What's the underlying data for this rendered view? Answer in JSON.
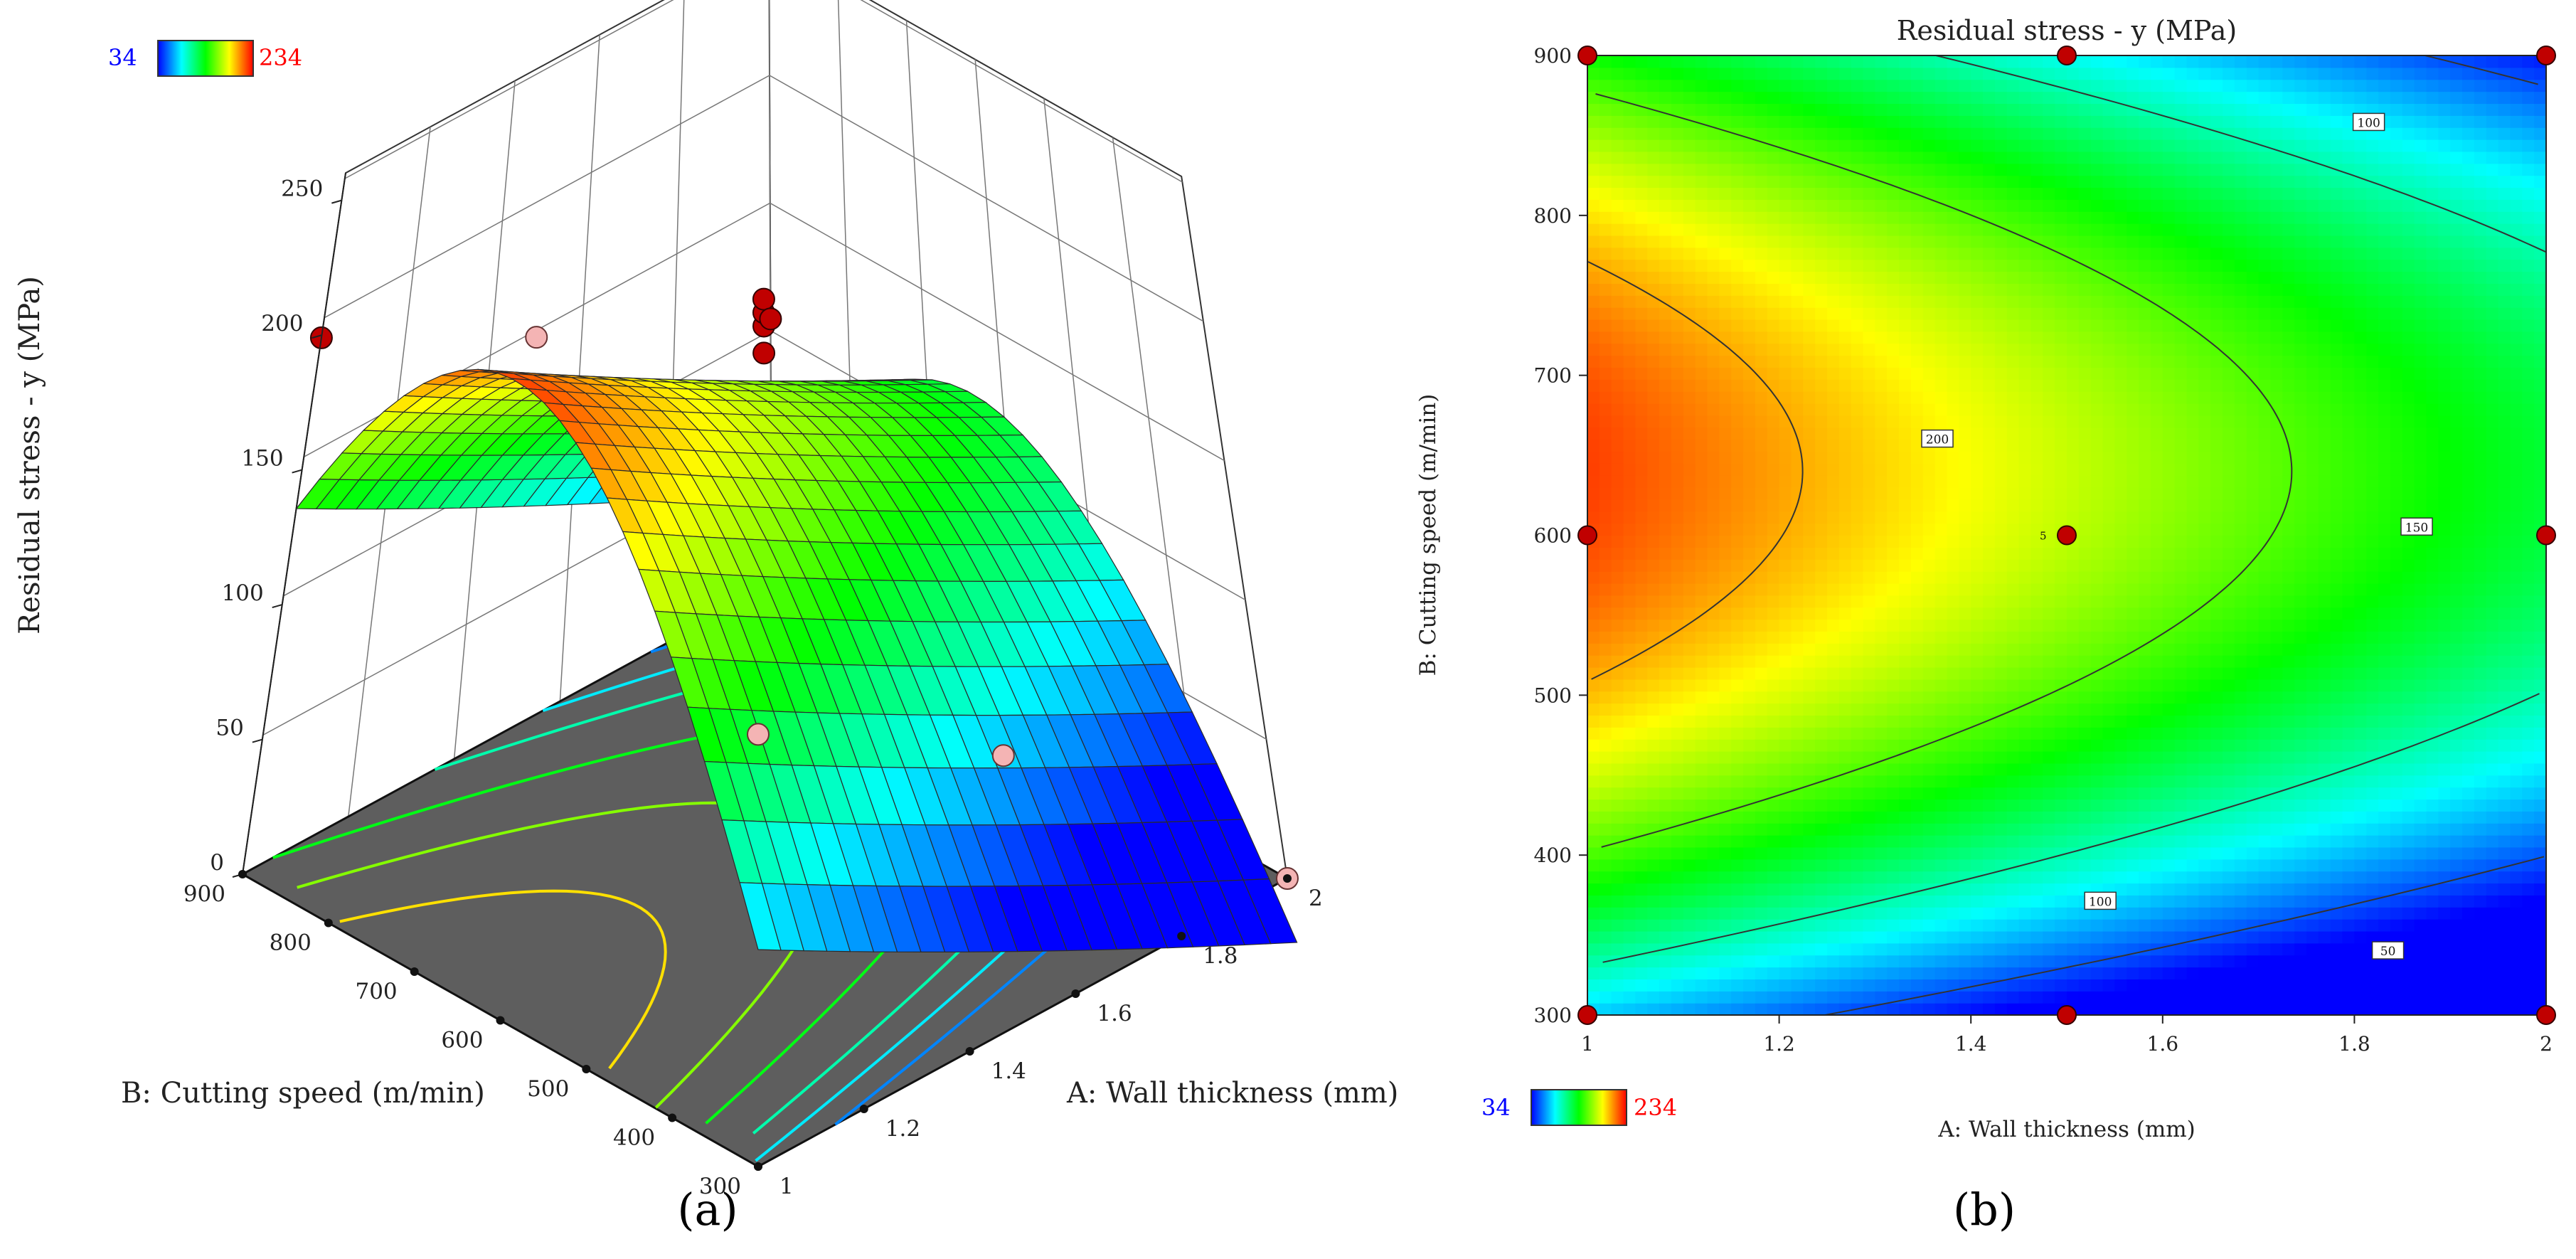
{
  "chart_data": [
    {
      "panel": "a",
      "type": "surface3d",
      "caption": "(a)",
      "zlabel": "Residual stress - y (MPa)",
      "xlabel": "A: Wall thickness (mm)",
      "ylabel": "B: Cutting speed (m/min)",
      "legend": {
        "min": "34",
        "max": "234",
        "min_color": "#0000ff",
        "max_color": "#ff0000"
      },
      "z_ticks": [
        "0",
        "50",
        "100",
        "150",
        "200",
        "250"
      ],
      "x_ticks": [
        "1",
        "1.2",
        "1.4",
        "1.6",
        "1.8",
        "2"
      ],
      "y_ticks": [
        "300",
        "400",
        "500",
        "600",
        "700",
        "800",
        "900"
      ],
      "x_range": [
        1,
        2
      ],
      "y_range": [
        300,
        900
      ],
      "z_range": [
        0,
        250
      ],
      "points_above": [
        {
          "A": 1.0,
          "B": 900,
          "y": 199
        },
        {
          "A": 1.5,
          "B": 600,
          "y": 204
        },
        {
          "A": 1.5,
          "B": 600,
          "y": 209
        },
        {
          "A": 1.5,
          "B": 600,
          "y": 214
        },
        {
          "A": 1.5,
          "B": 600,
          "y": 194
        },
        {
          "A": 2.0,
          "B": 900,
          "y": 108
        }
      ],
      "points_below": [
        {
          "A": 1.0,
          "B": 300,
          "y": 148
        },
        {
          "A": 1.5,
          "B": 900,
          "y": 152
        },
        {
          "A": 1.5,
          "B": 300,
          "y": 95
        },
        {
          "A": 2.0,
          "B": 300,
          "y": 0
        }
      ]
    },
    {
      "panel": "b",
      "type": "contour",
      "caption": "(b)",
      "title": "Residual stress - y (MPa)",
      "xlabel": "A: Wall thickness (mm)",
      "ylabel": "B: Cutting speed (m/min)",
      "legend": {
        "min": "34",
        "max": "234",
        "min_color": "#0000ff",
        "max_color": "#ff0000"
      },
      "x_ticks": [
        "1",
        "1.2",
        "1.4",
        "1.6",
        "1.8",
        "2"
      ],
      "y_ticks": [
        "300",
        "400",
        "500",
        "600",
        "700",
        "800",
        "900"
      ],
      "x_range": [
        1,
        2
      ],
      "y_range": [
        300,
        900
      ],
      "contour_levels": [
        50,
        100,
        150,
        200
      ],
      "contour_labels": [
        "200",
        "150",
        "100",
        "100",
        "50"
      ],
      "center_point_label": "5",
      "design_points": [
        {
          "A": 1.0,
          "B": 300
        },
        {
          "A": 1.5,
          "B": 300
        },
        {
          "A": 2.0,
          "B": 300
        },
        {
          "A": 1.0,
          "B": 600
        },
        {
          "A": 1.5,
          "B": 600
        },
        {
          "A": 2.0,
          "B": 600
        },
        {
          "A": 1.0,
          "B": 900
        },
        {
          "A": 1.5,
          "B": 900
        },
        {
          "A": 2.0,
          "B": 900
        }
      ]
    }
  ]
}
